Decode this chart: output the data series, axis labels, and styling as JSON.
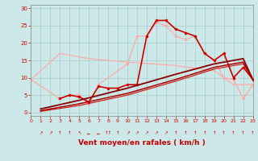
{
  "bg_color": "#cce8e8",
  "grid_color": "#aacccc",
  "xlabel": "Vent moyen/en rafales ( km/h )",
  "xlabel_color": "#cc0000",
  "xlabel_fontsize": 6.5,
  "tick_color": "#cc0000",
  "xlim": [
    0,
    23
  ],
  "ylim": [
    -1,
    31
  ],
  "yticks": [
    0,
    5,
    10,
    15,
    20,
    25,
    30
  ],
  "xticks": [
    0,
    1,
    2,
    3,
    4,
    5,
    6,
    7,
    8,
    9,
    10,
    11,
    12,
    13,
    14,
    15,
    16,
    17,
    18,
    19,
    20,
    21,
    22,
    23
  ],
  "lines": [
    {
      "name": "pink_diagonal_down",
      "x": [
        0,
        3,
        6,
        10,
        15,
        19,
        20,
        21,
        22,
        23
      ],
      "y": [
        9.5,
        17,
        15.5,
        14.5,
        13.5,
        12,
        10,
        8,
        8,
        8
      ],
      "color": "#ffaaaa",
      "lw": 0.9,
      "marker": null,
      "ms": 0,
      "zorder": 2
    },
    {
      "name": "pink_dip_up",
      "x": [
        0,
        3,
        4,
        5,
        6,
        7,
        10,
        11,
        12,
        13,
        14,
        15,
        16,
        17,
        18,
        19,
        20,
        21,
        22,
        23
      ],
      "y": [
        9.5,
        4,
        5,
        5,
        2.5,
        8,
        14,
        22,
        22,
        26,
        25,
        22,
        21,
        22,
        17,
        15,
        10,
        9.5,
        4,
        8
      ],
      "color": "#ffaaaa",
      "lw": 0.9,
      "marker": "o",
      "ms": 2.5,
      "zorder": 2
    },
    {
      "name": "red_main",
      "x": [
        3,
        4,
        5,
        6,
        7,
        8,
        9,
        10,
        11,
        12,
        13,
        14,
        15,
        16,
        17,
        18,
        19,
        20,
        21,
        22,
        23
      ],
      "y": [
        4,
        5,
        4.5,
        3,
        7.5,
        7,
        7,
        8,
        8,
        22,
        26.5,
        26.5,
        24,
        23,
        22,
        17,
        15,
        17,
        10,
        13,
        9.5
      ],
      "color": "#cc0000",
      "lw": 1.2,
      "marker": "o",
      "ms": 2.5,
      "zorder": 3
    },
    {
      "name": "darkred_trend1",
      "x": [
        1,
        5,
        10,
        15,
        19,
        20,
        21,
        22,
        23
      ],
      "y": [
        1,
        3.5,
        7,
        11,
        14,
        14.5,
        15,
        15.5,
        9.5
      ],
      "color": "#880000",
      "lw": 1.3,
      "marker": null,
      "ms": 0,
      "zorder": 3
    },
    {
      "name": "darkred_trend2",
      "x": [
        1,
        5,
        10,
        15,
        19,
        20,
        21,
        22,
        23
      ],
      "y": [
        0.5,
        2.5,
        5.5,
        9.5,
        13,
        13.5,
        14,
        14.5,
        9.5
      ],
      "color": "#aa0000",
      "lw": 1.1,
      "marker": null,
      "ms": 0,
      "zorder": 3
    },
    {
      "name": "darkred_trend3",
      "x": [
        1,
        5,
        10,
        15,
        19,
        20,
        21,
        22,
        23
      ],
      "y": [
        0.3,
        2,
        5,
        9,
        12.5,
        13,
        13.5,
        14,
        9.5
      ],
      "color": "#cc2222",
      "lw": 0.9,
      "marker": null,
      "ms": 0,
      "zorder": 2
    }
  ],
  "wind_arrows": [
    "↗",
    "↗",
    "↑",
    "↑",
    "↖",
    "←",
    "←",
    "↑↑",
    "↑",
    "↗",
    "↗",
    "↗",
    "↗",
    "↗",
    "↑",
    "↑",
    "↑",
    "↑",
    "↑"
  ],
  "wind_arrow_color": "#cc0000"
}
